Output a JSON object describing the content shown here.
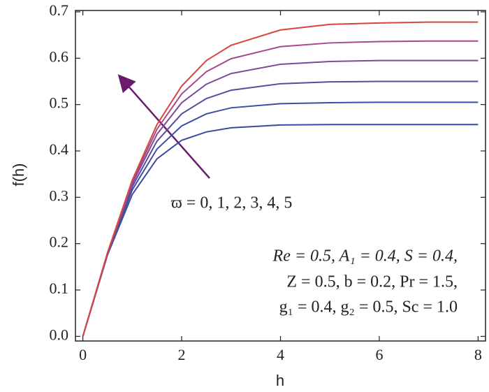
{
  "chart_data": {
    "type": "line",
    "xlabel": "h",
    "ylabel": "f(h)",
    "x": [
      0,
      0.5,
      1,
      1.5,
      2,
      2.5,
      3,
      4,
      5,
      6,
      7,
      8
    ],
    "series": [
      {
        "color": "#3b4a9e",
        "values": [
          0,
          0.176,
          0.306,
          0.383,
          0.423,
          0.441,
          0.45,
          0.456,
          0.457,
          0.457,
          0.457,
          0.457
        ]
      },
      {
        "color": "#3f4ea4",
        "values": [
          0,
          0.177,
          0.316,
          0.404,
          0.454,
          0.48,
          0.493,
          0.502,
          0.504,
          0.505,
          0.505,
          0.505
        ]
      },
      {
        "color": "#5a4a9e",
        "values": [
          0,
          0.178,
          0.323,
          0.421,
          0.48,
          0.513,
          0.531,
          0.545,
          0.549,
          0.55,
          0.55,
          0.55
        ]
      },
      {
        "color": "#7a4b9a",
        "values": [
          0,
          0.179,
          0.329,
          0.436,
          0.504,
          0.544,
          0.567,
          0.587,
          0.593,
          0.595,
          0.595,
          0.595
        ]
      },
      {
        "color": "#a8478f",
        "values": [
          0,
          0.18,
          0.333,
          0.447,
          0.523,
          0.571,
          0.599,
          0.625,
          0.633,
          0.636,
          0.637,
          0.637
        ]
      },
      {
        "color": "#d9453c",
        "values": [
          0,
          0.181,
          0.337,
          0.457,
          0.54,
          0.595,
          0.628,
          0.661,
          0.673,
          0.676,
          0.678,
          0.678
        ]
      }
    ],
    "xlim": [
      -0.15,
      8.15
    ],
    "ylim": [
      -0.01,
      0.703
    ],
    "xticks": [
      0,
      2,
      4,
      6,
      8
    ],
    "yticks": [
      {
        "value": 0,
        "label": "0.0"
      },
      0.1,
      0.2,
      0.3,
      0.4,
      0.5,
      0.6,
      0.7
    ],
    "annotations": [
      "ϖ = 0, 1, 2, 3, 4, 5",
      "Re = 0.5, A₁ = 0.4, S = 0.4,",
      "Z = 0.5, b = 0.2, Pr = 1.5,",
      "g₁ = 0.4, g₂ = 0.5, Sc = 1.0"
    ]
  }
}
